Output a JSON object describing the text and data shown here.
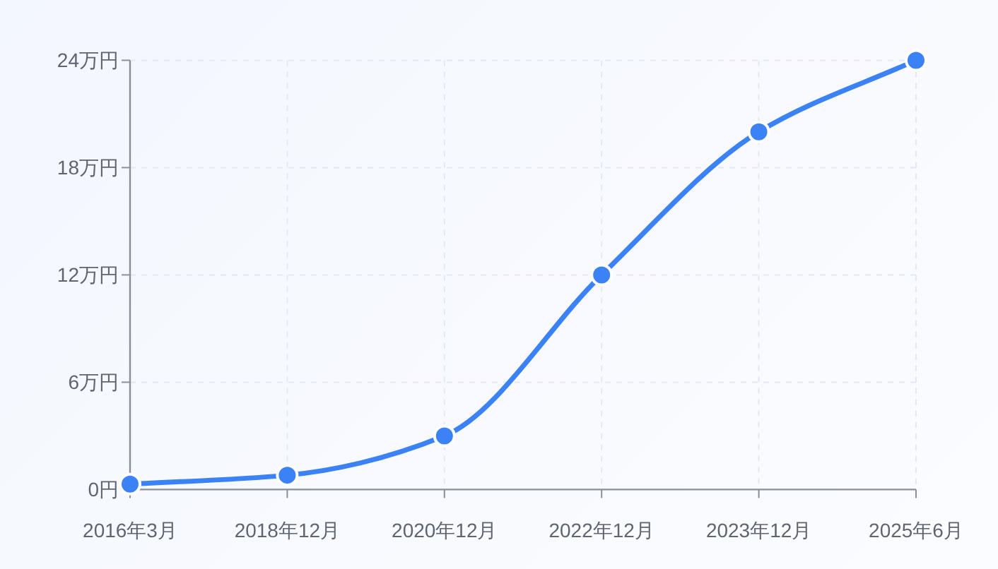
{
  "chart_data": {
    "type": "line",
    "categories": [
      "2016年3月",
      "2018年12月",
      "2020年12月",
      "2022年12月",
      "2023年12月",
      "2025年6月"
    ],
    "series": [
      {
        "color": "#3b82f6",
        "values": [
          0.3,
          0.8,
          3,
          12,
          20,
          24
        ]
      }
    ],
    "ylim": [
      0,
      24
    ],
    "yticks": [
      {
        "value": 0,
        "label": "0円"
      },
      {
        "value": 6,
        "label": "6万円"
      },
      {
        "value": 12,
        "label": "12万円"
      },
      {
        "value": 18,
        "label": "18万円"
      },
      {
        "value": 24,
        "label": "24万円"
      }
    ],
    "grid": true,
    "marker": "circle",
    "line_style": "solid"
  }
}
